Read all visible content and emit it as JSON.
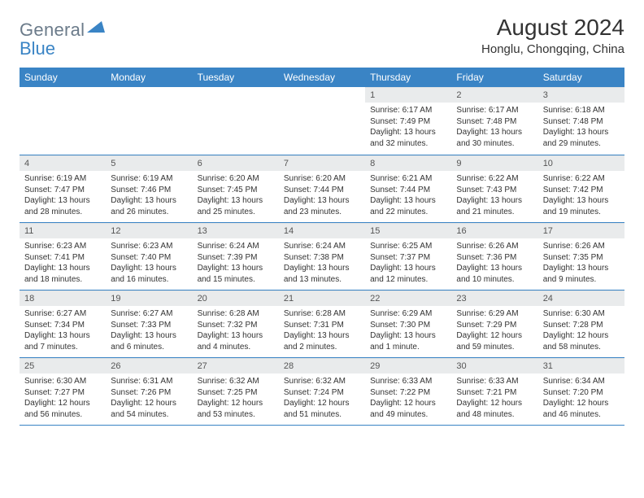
{
  "brand": {
    "part1": "General",
    "part2": "Blue"
  },
  "title": "August 2024",
  "location": "Honglu, Chongqing, China",
  "header_bg": "#3a84c5",
  "day_headers": [
    "Sunday",
    "Monday",
    "Tuesday",
    "Wednesday",
    "Thursday",
    "Friday",
    "Saturday"
  ],
  "weeks": [
    [
      {
        "n": "",
        "lines": []
      },
      {
        "n": "",
        "lines": []
      },
      {
        "n": "",
        "lines": []
      },
      {
        "n": "",
        "lines": []
      },
      {
        "n": "1",
        "lines": [
          "Sunrise: 6:17 AM",
          "Sunset: 7:49 PM",
          "Daylight: 13 hours and 32 minutes."
        ]
      },
      {
        "n": "2",
        "lines": [
          "Sunrise: 6:17 AM",
          "Sunset: 7:48 PM",
          "Daylight: 13 hours and 30 minutes."
        ]
      },
      {
        "n": "3",
        "lines": [
          "Sunrise: 6:18 AM",
          "Sunset: 7:48 PM",
          "Daylight: 13 hours and 29 minutes."
        ]
      }
    ],
    [
      {
        "n": "4",
        "lines": [
          "Sunrise: 6:19 AM",
          "Sunset: 7:47 PM",
          "Daylight: 13 hours and 28 minutes."
        ]
      },
      {
        "n": "5",
        "lines": [
          "Sunrise: 6:19 AM",
          "Sunset: 7:46 PM",
          "Daylight: 13 hours and 26 minutes."
        ]
      },
      {
        "n": "6",
        "lines": [
          "Sunrise: 6:20 AM",
          "Sunset: 7:45 PM",
          "Daylight: 13 hours and 25 minutes."
        ]
      },
      {
        "n": "7",
        "lines": [
          "Sunrise: 6:20 AM",
          "Sunset: 7:44 PM",
          "Daylight: 13 hours and 23 minutes."
        ]
      },
      {
        "n": "8",
        "lines": [
          "Sunrise: 6:21 AM",
          "Sunset: 7:44 PM",
          "Daylight: 13 hours and 22 minutes."
        ]
      },
      {
        "n": "9",
        "lines": [
          "Sunrise: 6:22 AM",
          "Sunset: 7:43 PM",
          "Daylight: 13 hours and 21 minutes."
        ]
      },
      {
        "n": "10",
        "lines": [
          "Sunrise: 6:22 AM",
          "Sunset: 7:42 PM",
          "Daylight: 13 hours and 19 minutes."
        ]
      }
    ],
    [
      {
        "n": "11",
        "lines": [
          "Sunrise: 6:23 AM",
          "Sunset: 7:41 PM",
          "Daylight: 13 hours and 18 minutes."
        ]
      },
      {
        "n": "12",
        "lines": [
          "Sunrise: 6:23 AM",
          "Sunset: 7:40 PM",
          "Daylight: 13 hours and 16 minutes."
        ]
      },
      {
        "n": "13",
        "lines": [
          "Sunrise: 6:24 AM",
          "Sunset: 7:39 PM",
          "Daylight: 13 hours and 15 minutes."
        ]
      },
      {
        "n": "14",
        "lines": [
          "Sunrise: 6:24 AM",
          "Sunset: 7:38 PM",
          "Daylight: 13 hours and 13 minutes."
        ]
      },
      {
        "n": "15",
        "lines": [
          "Sunrise: 6:25 AM",
          "Sunset: 7:37 PM",
          "Daylight: 13 hours and 12 minutes."
        ]
      },
      {
        "n": "16",
        "lines": [
          "Sunrise: 6:26 AM",
          "Sunset: 7:36 PM",
          "Daylight: 13 hours and 10 minutes."
        ]
      },
      {
        "n": "17",
        "lines": [
          "Sunrise: 6:26 AM",
          "Sunset: 7:35 PM",
          "Daylight: 13 hours and 9 minutes."
        ]
      }
    ],
    [
      {
        "n": "18",
        "lines": [
          "Sunrise: 6:27 AM",
          "Sunset: 7:34 PM",
          "Daylight: 13 hours and 7 minutes."
        ]
      },
      {
        "n": "19",
        "lines": [
          "Sunrise: 6:27 AM",
          "Sunset: 7:33 PM",
          "Daylight: 13 hours and 6 minutes."
        ]
      },
      {
        "n": "20",
        "lines": [
          "Sunrise: 6:28 AM",
          "Sunset: 7:32 PM",
          "Daylight: 13 hours and 4 minutes."
        ]
      },
      {
        "n": "21",
        "lines": [
          "Sunrise: 6:28 AM",
          "Sunset: 7:31 PM",
          "Daylight: 13 hours and 2 minutes."
        ]
      },
      {
        "n": "22",
        "lines": [
          "Sunrise: 6:29 AM",
          "Sunset: 7:30 PM",
          "Daylight: 13 hours and 1 minute."
        ]
      },
      {
        "n": "23",
        "lines": [
          "Sunrise: 6:29 AM",
          "Sunset: 7:29 PM",
          "Daylight: 12 hours and 59 minutes."
        ]
      },
      {
        "n": "24",
        "lines": [
          "Sunrise: 6:30 AM",
          "Sunset: 7:28 PM",
          "Daylight: 12 hours and 58 minutes."
        ]
      }
    ],
    [
      {
        "n": "25",
        "lines": [
          "Sunrise: 6:30 AM",
          "Sunset: 7:27 PM",
          "Daylight: 12 hours and 56 minutes."
        ]
      },
      {
        "n": "26",
        "lines": [
          "Sunrise: 6:31 AM",
          "Sunset: 7:26 PM",
          "Daylight: 12 hours and 54 minutes."
        ]
      },
      {
        "n": "27",
        "lines": [
          "Sunrise: 6:32 AM",
          "Sunset: 7:25 PM",
          "Daylight: 12 hours and 53 minutes."
        ]
      },
      {
        "n": "28",
        "lines": [
          "Sunrise: 6:32 AM",
          "Sunset: 7:24 PM",
          "Daylight: 12 hours and 51 minutes."
        ]
      },
      {
        "n": "29",
        "lines": [
          "Sunrise: 6:33 AM",
          "Sunset: 7:22 PM",
          "Daylight: 12 hours and 49 minutes."
        ]
      },
      {
        "n": "30",
        "lines": [
          "Sunrise: 6:33 AM",
          "Sunset: 7:21 PM",
          "Daylight: 12 hours and 48 minutes."
        ]
      },
      {
        "n": "31",
        "lines": [
          "Sunrise: 6:34 AM",
          "Sunset: 7:20 PM",
          "Daylight: 12 hours and 46 minutes."
        ]
      }
    ]
  ]
}
